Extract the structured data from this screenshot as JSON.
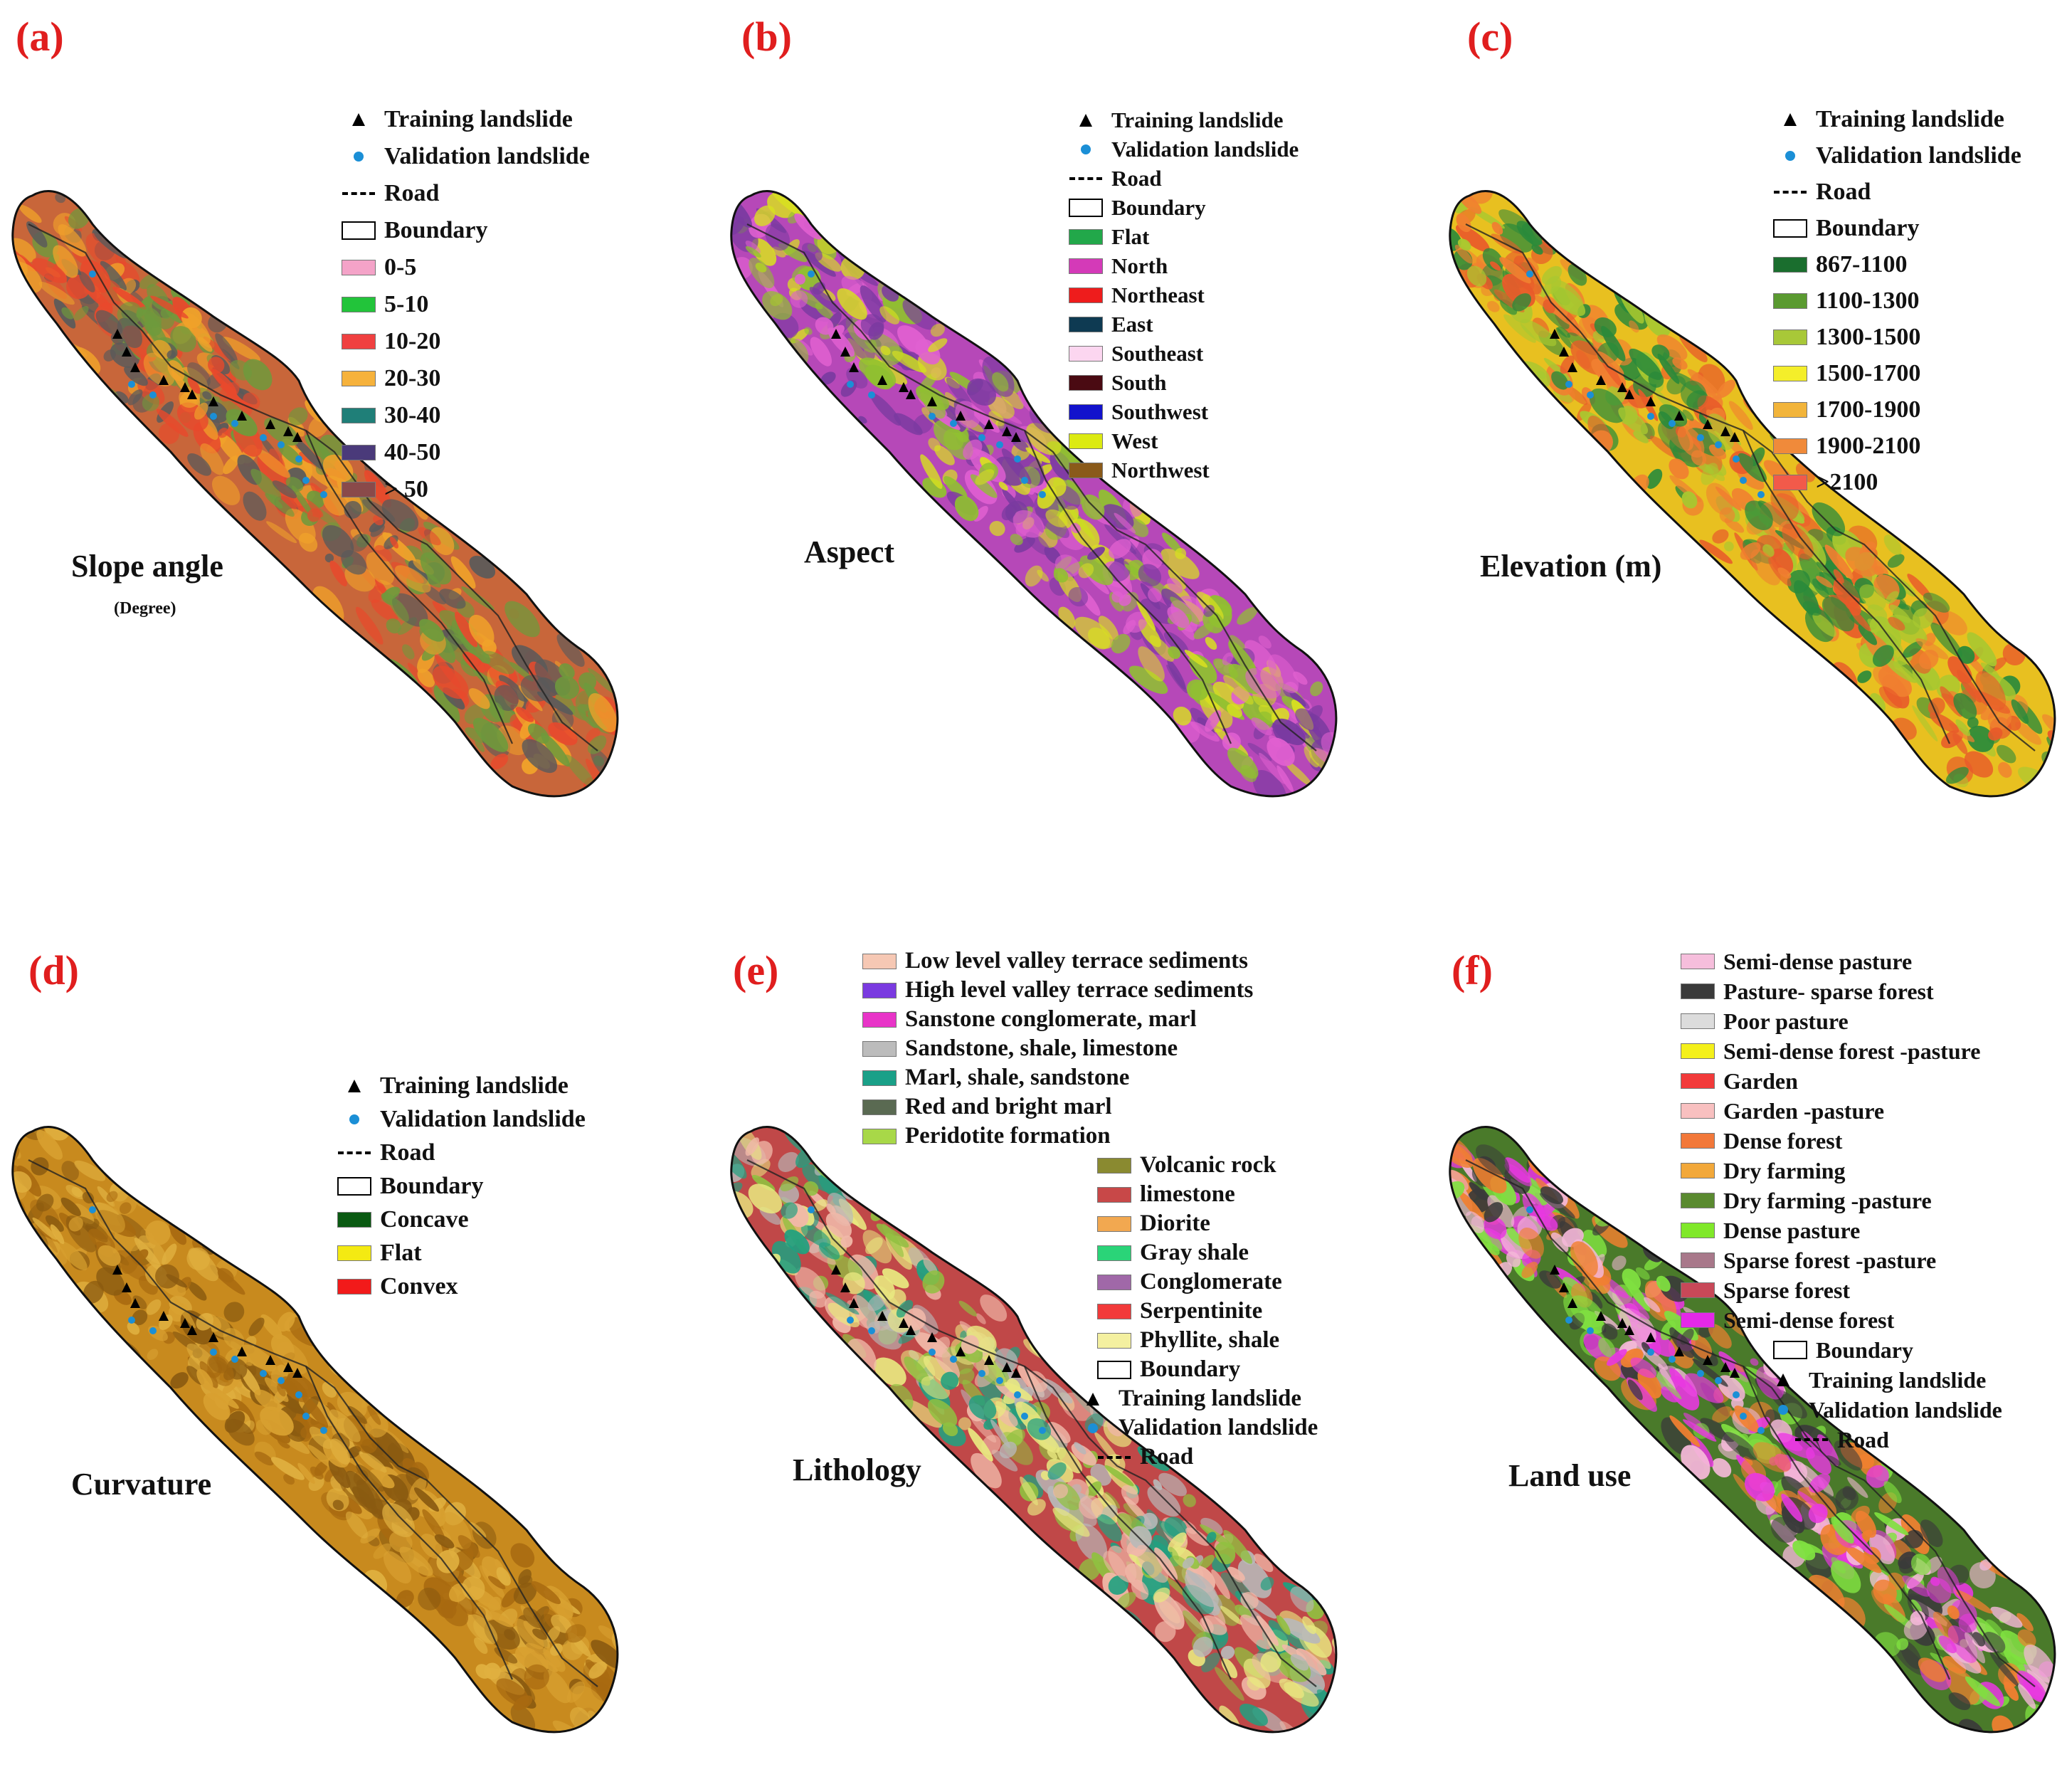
{
  "panels": [
    {
      "id": "a",
      "letter": "(a)",
      "title": "Slope angle",
      "subtitle": "(Degree)",
      "base": "#c8663a",
      "texture": [
        "#e8492c",
        "#f0a22a",
        "#6e9a3c",
        "#5a5a5a"
      ],
      "legend_items": [
        {
          "kind": "triangle",
          "label": "Training landslide"
        },
        {
          "kind": "dot",
          "label": "Validation landslide"
        },
        {
          "kind": "road",
          "label": "Road"
        },
        {
          "kind": "boundary",
          "label": "Boundary"
        },
        {
          "kind": "swatch",
          "color": "#f4a3c8",
          "label": "0-5"
        },
        {
          "kind": "swatch",
          "color": "#22c43a",
          "label": "5-10"
        },
        {
          "kind": "swatch",
          "color": "#f04040",
          "label": "10-20"
        },
        {
          "kind": "swatch",
          "color": "#f6b23c",
          "label": "20-30"
        },
        {
          "kind": "swatch",
          "color": "#1f7f78",
          "label": "30-40"
        },
        {
          "kind": "swatch",
          "color": "#4a3a7a",
          "label": "40-50"
        },
        {
          "kind": "swatch",
          "color": "#8a4a4a",
          "label": "> 50"
        }
      ]
    },
    {
      "id": "b",
      "letter": "(b)",
      "title": "Aspect",
      "subtitle": "",
      "base": "#b648b8",
      "texture": [
        "#d8e020",
        "#7a3aa0",
        "#e060d0",
        "#90c030"
      ],
      "legend_items": [
        {
          "kind": "triangle",
          "label": "Training landslide"
        },
        {
          "kind": "dot",
          "label": "Validation landslide"
        },
        {
          "kind": "road",
          "label": "Road"
        },
        {
          "kind": "boundary",
          "label": "Boundary"
        },
        {
          "kind": "swatch",
          "color": "#22a84a",
          "label": "Flat"
        },
        {
          "kind": "swatch",
          "color": "#d43ab8",
          "label": "North"
        },
        {
          "kind": "swatch",
          "color": "#ee1c1c",
          "label": "Northeast"
        },
        {
          "kind": "swatch",
          "color": "#0e3a52",
          "label": "East"
        },
        {
          "kind": "swatch",
          "color": "#fcd6f0",
          "label": "Southeast"
        },
        {
          "kind": "swatch",
          "color": "#4a0a12",
          "label": "South"
        },
        {
          "kind": "swatch",
          "color": "#1212cc",
          "label": "Southwest"
        },
        {
          "kind": "swatch",
          "color": "#dcea12",
          "label": "West"
        },
        {
          "kind": "swatch",
          "color": "#8a5a1a",
          "label": "Northwest"
        }
      ]
    },
    {
      "id": "c",
      "letter": "(c)",
      "title": "Elevation (m)",
      "subtitle": "",
      "base": "#e8c020",
      "texture": [
        "#e85a2a",
        "#2a8a3a",
        "#a8c830",
        "#f08030"
      ],
      "legend_items": [
        {
          "kind": "triangle",
          "label": "Training landslide"
        },
        {
          "kind": "dot",
          "label": "Validation landslide"
        },
        {
          "kind": "road",
          "label": "Road"
        },
        {
          "kind": "boundary",
          "label": "Boundary"
        },
        {
          "kind": "swatch",
          "color": "#1a6e2e",
          "label": "867-1100"
        },
        {
          "kind": "swatch",
          "color": "#5a9a30",
          "label": "1100-1300"
        },
        {
          "kind": "swatch",
          "color": "#a8c838",
          "label": "1300-1500"
        },
        {
          "kind": "swatch",
          "color": "#f4ee2a",
          "label": "1500-1700"
        },
        {
          "kind": "swatch",
          "color": "#f2b43a",
          "label": "1700-1900"
        },
        {
          "kind": "swatch",
          "color": "#f08a3a",
          "label": "1900-2100"
        },
        {
          "kind": "swatch",
          "color": "#f25a4a",
          "label": ">2100"
        }
      ]
    },
    {
      "id": "d",
      "letter": "(d)",
      "title": "Curvature",
      "subtitle": "",
      "base": "#c88a1e",
      "texture": [
        "#a86a10",
        "#d8a030",
        "#8a5a10",
        "#e0b040"
      ],
      "legend_items": [
        {
          "kind": "triangle",
          "label": "Training landslide"
        },
        {
          "kind": "dot",
          "label": "Validation landslide"
        },
        {
          "kind": "road",
          "label": "Road"
        },
        {
          "kind": "boundary",
          "label": "Boundary"
        },
        {
          "kind": "swatch",
          "color": "#0a5a12",
          "label": "Concave"
        },
        {
          "kind": "swatch",
          "color": "#f4ea12",
          "label": "Flat"
        },
        {
          "kind": "swatch",
          "color": "#f21a1a",
          "label": "Convex"
        }
      ]
    },
    {
      "id": "e",
      "letter": "(e)",
      "title": "Lithology",
      "subtitle": "",
      "base": "#c04848",
      "texture": [
        "#b8b8b8",
        "#e8e880",
        "#20a080",
        "#f0b8a8",
        "#90c040"
      ],
      "legend_items": [
        {
          "kind": "swatch",
          "color": "#f6c8b4",
          "label": "Low level valley terrace sediments"
        },
        {
          "kind": "swatch",
          "color": "#7a3ae0",
          "label": "High level valley terrace sediments"
        },
        {
          "kind": "swatch",
          "color": "#e834c8",
          "label": "Sanstone conglomerate, marl"
        },
        {
          "kind": "swatch",
          "color": "#bcbcbc",
          "label": "Sandstone, shale, limestone"
        },
        {
          "kind": "swatch",
          "color": "#1aa088",
          "label": "Marl, shale, sandstone"
        },
        {
          "kind": "swatch",
          "color": "#5a6a52",
          "label": "Red and bright marl"
        },
        {
          "kind": "swatch",
          "color": "#a8d848",
          "label": "Peridotite formation"
        },
        {
          "kind": "swatch",
          "color": "#8a8a30",
          "label": "Volcanic rock"
        },
        {
          "kind": "swatch",
          "color": "#c84848",
          "label": "limestone"
        },
        {
          "kind": "swatch",
          "color": "#f2a850",
          "label": "Diorite"
        },
        {
          "kind": "swatch",
          "color": "#2ad478",
          "label": "Gray shale"
        },
        {
          "kind": "swatch",
          "color": "#a068a8",
          "label": "Conglomerate"
        },
        {
          "kind": "swatch",
          "color": "#f23a3a",
          "label": "Serpentinite"
        },
        {
          "kind": "swatch",
          "color": "#f4f0a0",
          "label": "Phyllite, shale"
        },
        {
          "kind": "boundary",
          "label": "Boundary"
        },
        {
          "kind": "triangle",
          "label": "Training landslide"
        },
        {
          "kind": "dot",
          "label": "Validation landslide"
        },
        {
          "kind": "road",
          "label": "Road"
        }
      ]
    },
    {
      "id": "f",
      "letter": "(f)",
      "title": "Land use",
      "subtitle": "",
      "base": "#4a7a2a",
      "texture": [
        "#e838e0",
        "#f4b8d8",
        "#80e040",
        "#f08030",
        "#3a3a3a"
      ],
      "legend_items": [
        {
          "kind": "swatch",
          "color": "#f6bedc",
          "label": "Semi-dense pasture"
        },
        {
          "kind": "swatch",
          "color": "#3a3a3a",
          "label": "Pasture- sparse forest"
        },
        {
          "kind": "swatch",
          "color": "#dcdcdc",
          "label": "Poor pasture"
        },
        {
          "kind": "swatch",
          "color": "#f4f01a",
          "label": "Semi-dense forest -pasture"
        },
        {
          "kind": "swatch",
          "color": "#f23a3a",
          "label": "Garden"
        },
        {
          "kind": "swatch",
          "color": "#f8c0c0",
          "label": "Garden -pasture"
        },
        {
          "kind": "swatch",
          "color": "#f2783a",
          "label": "Dense forest"
        },
        {
          "kind": "swatch",
          "color": "#f2a83a",
          "label": "Dry farming"
        },
        {
          "kind": "swatch",
          "color": "#5a8a30",
          "label": "Dry farming -pasture"
        },
        {
          "kind": "swatch",
          "color": "#80e82a",
          "label": "Dense pasture"
        },
        {
          "kind": "swatch",
          "color": "#a8788a",
          "label": "Sparse forest -pasture"
        },
        {
          "kind": "swatch",
          "color": "#c84858",
          "label": "Sparse forest"
        },
        {
          "kind": "swatch",
          "color": "#e428e8",
          "label": "Semi-dense forest"
        },
        {
          "kind": "boundary",
          "label": "Boundary"
        },
        {
          "kind": "triangle",
          "label": "Training landslide"
        },
        {
          "kind": "dot",
          "label": "Validation landslide"
        },
        {
          "kind": "road",
          "label": "Road"
        }
      ]
    }
  ]
}
